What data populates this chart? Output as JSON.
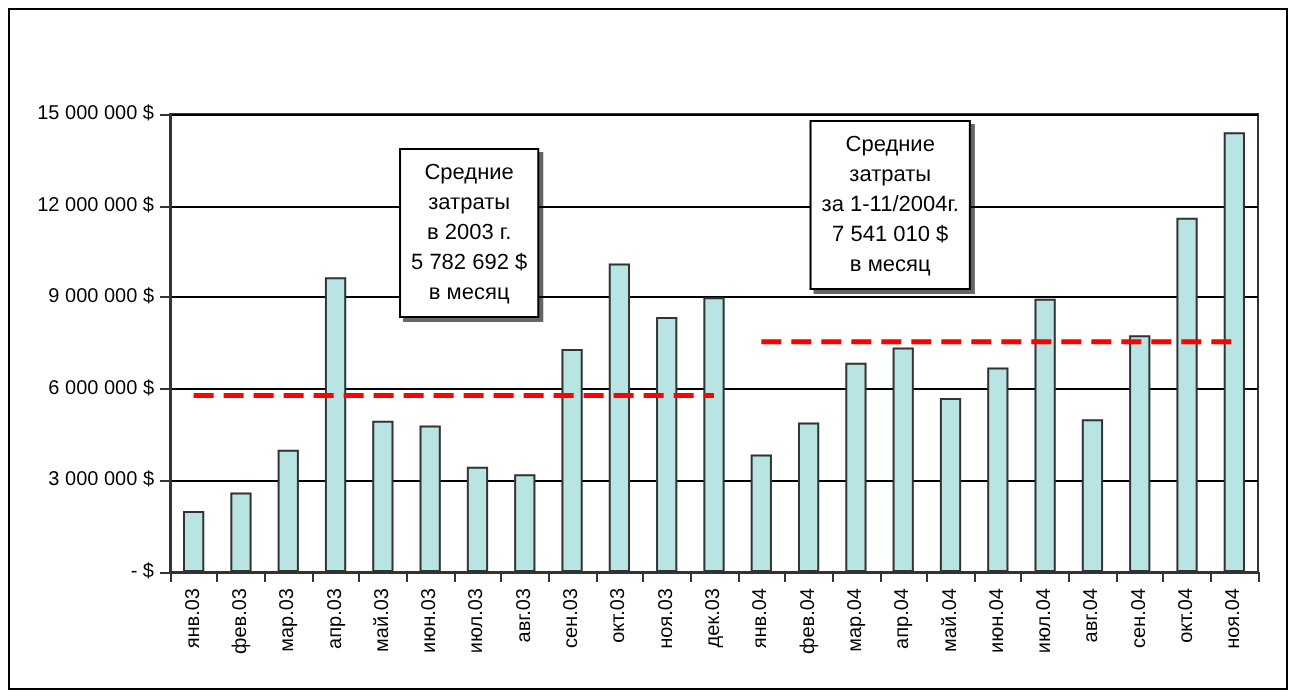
{
  "chart_data": {
    "type": "bar",
    "categories": [
      "янв.03",
      "фев.03",
      "мар.03",
      "апр.03",
      "май.03",
      "июн.03",
      "июл.03",
      "авг.03",
      "сен.03",
      "окт.03",
      "ноя.03",
      "дек.03",
      "янв.04",
      "фев.04",
      "мар.04",
      "апр.04",
      "май.04",
      "июн.04",
      "июл.04",
      "авг.04",
      "сен.04",
      "окт.04",
      "ноя.04"
    ],
    "series": [
      {
        "color": "#b8e4e4",
        "values": [
          2000000,
          2600000,
          4000000,
          9650000,
          4950000,
          4800000,
          3450000,
          3200000,
          7300000,
          10100000,
          8350000,
          9000000,
          3850000,
          4900000,
          6850000,
          7350000,
          5700000,
          6700000,
          8950000,
          5000000,
          7750000,
          11600000,
          14400000
        ]
      },
      {
        "type": "line",
        "color": "#ff0000",
        "line_style": "dashed",
        "marker": "none",
        "values": [
          5782692,
          5782692,
          5782692,
          5782692,
          5782692,
          5782692,
          5782692,
          5782692,
          5782692,
          5782692,
          5782692,
          5782692,
          null,
          null,
          null,
          null,
          null,
          null,
          null,
          null,
          null,
          null,
          null
        ]
      },
      {
        "type": "line",
        "color": "#ff0000",
        "line_style": "dashed",
        "marker": "none",
        "values": [
          null,
          null,
          null,
          null,
          null,
          null,
          null,
          null,
          null,
          null,
          null,
          null,
          7541010,
          7541010,
          7541010,
          7541010,
          7541010,
          7541010,
          7541010,
          7541010,
          7541010,
          7541010,
          7541010
        ]
      }
    ],
    "ylim": [
      0,
      15000000
    ],
    "yticks": [
      {
        "value": 0,
        "label": "- $"
      },
      {
        "value": 3000000,
        "label": "3 000 000 $"
      },
      {
        "value": 6000000,
        "label": "6 000 000 $"
      },
      {
        "value": 9000000,
        "label": "9 000 000 $"
      },
      {
        "value": 12000000,
        "label": "12 000 000 $"
      },
      {
        "value": 15000000,
        "label": "15 000 000 $"
      }
    ],
    "grid": "y",
    "annotations": [
      "Средние\nзатраты\nв 2003 г.\n5 782 692 $\nв месяц",
      "Средние\nзатраты\nза 1-11/2004г.\n7 541 010 $\nв месяц"
    ]
  }
}
